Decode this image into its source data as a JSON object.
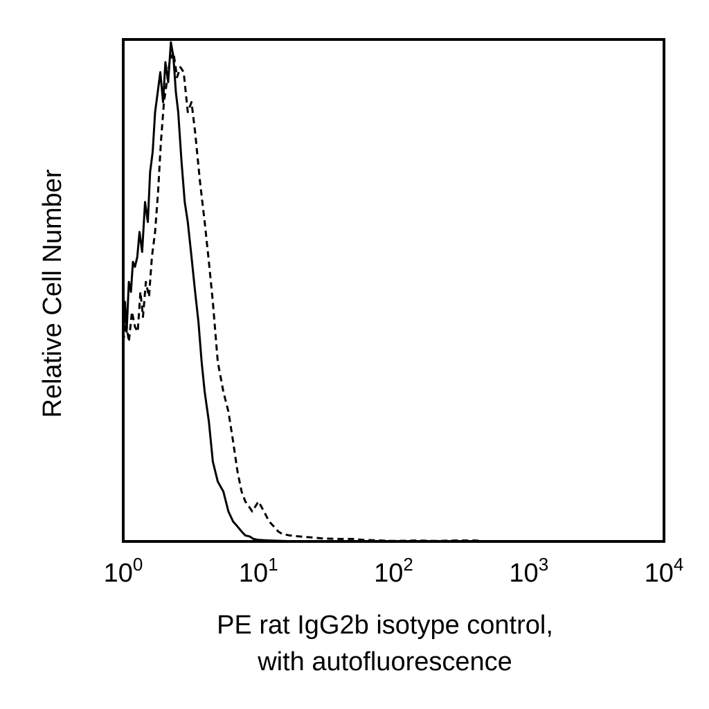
{
  "chart_data": {
    "type": "line",
    "title": "",
    "xlabel_lines": [
      "PE rat IgG2b isotype control,",
      "with autofluorescence"
    ],
    "ylabel": "Relative Cell Number",
    "x_scale": "log",
    "xlim": [
      1,
      10000
    ],
    "ylim": [
      0,
      100
    ],
    "grid": false,
    "legend": "none",
    "x_ticks": [
      {
        "value": 1,
        "base": "10",
        "exp": "0"
      },
      {
        "value": 10,
        "base": "10",
        "exp": "1"
      },
      {
        "value": 100,
        "base": "10",
        "exp": "2"
      },
      {
        "value": 1000,
        "base": "10",
        "exp": "3"
      },
      {
        "value": 10000,
        "base": "10",
        "exp": "4"
      }
    ],
    "series": [
      {
        "style": "solid",
        "color": "#000000",
        "x": [
          1.0,
          1.03,
          1.06,
          1.1,
          1.14,
          1.18,
          1.22,
          1.27,
          1.32,
          1.38,
          1.45,
          1.52,
          1.58,
          1.65,
          1.72,
          1.8,
          1.88,
          1.97,
          2.05,
          2.15,
          2.25,
          2.35,
          2.45,
          2.55,
          2.7,
          2.85,
          3.0,
          3.2,
          3.4,
          3.6,
          3.8,
          4.0,
          4.3,
          4.6,
          5.0,
          5.5,
          6.0,
          6.5,
          7.0,
          7.5,
          8.0,
          8.6,
          9.2,
          10.0,
          12,
          15,
          20,
          30,
          50
        ],
        "y": [
          41,
          48,
          42,
          52,
          50,
          56,
          55,
          57,
          62,
          58,
          68,
          64,
          74,
          78,
          86,
          90,
          94,
          88,
          96,
          92,
          100,
          97,
          90,
          86,
          76,
          68,
          64,
          57,
          50,
          44,
          36,
          30,
          24,
          16,
          12,
          10,
          6,
          4,
          3,
          2,
          1.2,
          1,
          0.5,
          0.3,
          0.2,
          0.1,
          0,
          0,
          0
        ]
      },
      {
        "style": "dashed",
        "color": "#000000",
        "x": [
          1.0,
          1.05,
          1.1,
          1.16,
          1.22,
          1.28,
          1.34,
          1.4,
          1.47,
          1.55,
          1.63,
          1.72,
          1.81,
          1.9,
          2.0,
          2.1,
          2.2,
          2.35,
          2.5,
          2.65,
          2.8,
          3.0,
          3.2,
          3.4,
          3.7,
          4.0,
          4.3,
          4.6,
          5.0,
          5.5,
          6.0,
          6.5,
          7.0,
          7.5,
          8.0,
          8.5,
          9.0,
          10.0,
          11.0,
          12.0,
          13.0,
          14.0,
          15.0,
          17,
          20,
          25,
          30,
          40,
          50,
          60,
          80,
          100,
          150,
          200,
          300,
          400,
          500
        ],
        "y": [
          40,
          44,
          40,
          46,
          43,
          42,
          50,
          45,
          52,
          49,
          57,
          62,
          70,
          80,
          88,
          92,
          96,
          98,
          93,
          95,
          94,
          86,
          88,
          82,
          72,
          64,
          56,
          48,
          36,
          30,
          26,
          20,
          14,
          10,
          8,
          7,
          6,
          8,
          6,
          4,
          3,
          2,
          1.5,
          1.2,
          1,
          0.8,
          0.6,
          0.5,
          0.5,
          0.3,
          0.2,
          0.1,
          0.2,
          0.1,
          0.2,
          0.2,
          0
        ]
      }
    ]
  }
}
